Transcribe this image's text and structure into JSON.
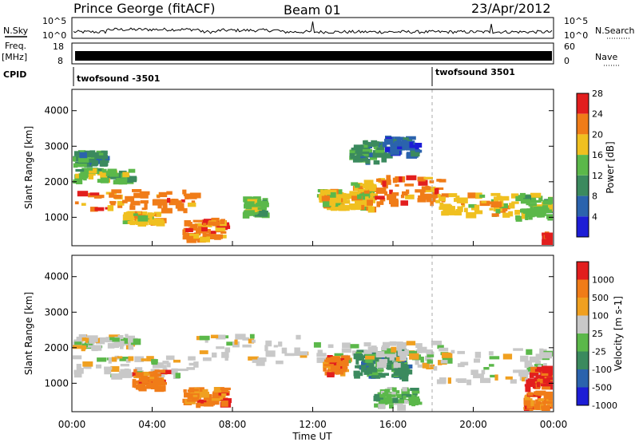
{
  "header": {
    "station": "Prince George (fitACF)",
    "beam": "Beam 01",
    "date": "23/Apr/2012"
  },
  "top_panels": {
    "nsky": {
      "label": "N.Sky",
      "ticks": [
        "10^5",
        "10^0"
      ]
    },
    "nsearch": {
      "label": "N.Search",
      "ticks": [
        "10^5",
        "10^0"
      ]
    },
    "freq": {
      "label_line1": "Freq.",
      "label_line2": "[MHz]",
      "ticks": [
        "18",
        "8"
      ]
    },
    "nave": {
      "label": "Nave",
      "ticks": [
        "60",
        "0"
      ]
    },
    "cpid": {
      "label": "CPID",
      "segments": [
        {
          "name": "twofsound -3501",
          "start_hour": 0
        },
        {
          "name": "twofsound 3501",
          "start_hour": 18
        }
      ]
    }
  },
  "x_axis": {
    "ticks": [
      "00:00",
      "04:00",
      "08:00",
      "12:00",
      "16:00",
      "20:00",
      "00:00"
    ],
    "label": "Time UT"
  },
  "chart_data": [
    {
      "type": "heatmap",
      "quantity": "power",
      "xlim": [
        0,
        24
      ],
      "x_units": "hours UT",
      "ylim": [
        200,
        4600
      ],
      "ylabel": "Slant Range [km]",
      "y_ticks": [
        "1000",
        "2000",
        "3000",
        "4000"
      ],
      "colorbar": {
        "label": "Power [dB]",
        "ticks": [
          "4",
          "8",
          "12",
          "16",
          "20",
          "24",
          "28"
        ],
        "colors": [
          "#1d1dd6",
          "#2b63ad",
          "#3b8a5e",
          "#5bb84a",
          "#f0c020",
          "#f07c18",
          "#e21e1e"
        ]
      },
      "bands": [
        {
          "t": [
            0.0,
            6.0
          ],
          "r": [
            1250,
            1800
          ],
          "level": 5
        },
        {
          "t": [
            0.0,
            3.0
          ],
          "r": [
            2050,
            2400
          ],
          "level": 3
        },
        {
          "t": [
            0.0,
            1.5
          ],
          "r": [
            2500,
            2900
          ],
          "level": 2
        },
        {
          "t": [
            2.5,
            4.2
          ],
          "r": [
            850,
            1200
          ],
          "level": 4
        },
        {
          "t": [
            5.5,
            7.5
          ],
          "r": [
            400,
            1000
          ],
          "level": 5
        },
        {
          "t": [
            8.5,
            9.5
          ],
          "r": [
            1100,
            1600
          ],
          "level": 3
        },
        {
          "t": [
            12.2,
            13.5
          ],
          "r": [
            1300,
            1800
          ],
          "level": 4
        },
        {
          "t": [
            13.8,
            14.8
          ],
          "r": [
            1300,
            2000
          ],
          "level": 4
        },
        {
          "t": [
            14.5,
            18.5
          ],
          "r": [
            1400,
            2200
          ],
          "level": 5
        },
        {
          "t": [
            18.0,
            22.0
          ],
          "r": [
            1100,
            1700
          ],
          "level": 4
        },
        {
          "t": [
            22.0,
            24.0
          ],
          "r": [
            1000,
            1700
          ],
          "level": 3
        },
        {
          "t": [
            23.4,
            24.0
          ],
          "r": [
            200,
            600
          ],
          "level": 6
        },
        {
          "t": [
            13.8,
            15.5
          ],
          "r": [
            2600,
            3200
          ],
          "level": 2
        },
        {
          "t": [
            15.5,
            17.0
          ],
          "r": [
            2800,
            3300
          ],
          "level": 1
        }
      ]
    },
    {
      "type": "heatmap",
      "quantity": "velocity",
      "xlim": [
        0,
        24
      ],
      "x_units": "hours UT",
      "ylim": [
        200,
        4600
      ],
      "ylabel": "Slant Range [km]",
      "y_ticks": [
        "1000",
        "2000",
        "3000",
        "4000"
      ],
      "colorbar": {
        "label": "Velocity [m s-1]",
        "ticks": [
          "1000",
          "500",
          "100",
          "25",
          "-25",
          "-100",
          "-500",
          "-1000"
        ],
        "colors": [
          "#1d1dd6",
          "#2b63ad",
          "#3b8a5e",
          "#5bb84a",
          "#c8c8c8",
          "#f0a020",
          "#f07c18",
          "#e21e1e"
        ]
      },
      "bands": [
        {
          "t": [
            0.0,
            6.0
          ],
          "r": [
            1250,
            1800
          ],
          "level": 4
        },
        {
          "t": [
            0.0,
            3.0
          ],
          "r": [
            2050,
            2400
          ],
          "level": 4
        },
        {
          "t": [
            3.0,
            4.5
          ],
          "r": [
            900,
            1400
          ],
          "level": 6
        },
        {
          "t": [
            5.5,
            7.5
          ],
          "r": [
            450,
            900
          ],
          "level": 6
        },
        {
          "t": [
            6.0,
            14.0
          ],
          "r": [
            1600,
            2400
          ],
          "level": 4
        },
        {
          "t": [
            12.5,
            13.5
          ],
          "r": [
            1300,
            1800
          ],
          "level": 6
        },
        {
          "t": [
            14.0,
            15.5
          ],
          "r": [
            1200,
            2000
          ],
          "level": 2
        },
        {
          "t": [
            15.5,
            16.5
          ],
          "r": [
            1200,
            2000
          ],
          "level": 2
        },
        {
          "t": [
            14.5,
            18.5
          ],
          "r": [
            1500,
            2200
          ],
          "level": 4
        },
        {
          "t": [
            18.0,
            24.0
          ],
          "r": [
            1100,
            2000
          ],
          "level": 4
        },
        {
          "t": [
            22.5,
            24.0
          ],
          "r": [
            900,
            1500
          ],
          "level": 7
        },
        {
          "t": [
            22.5,
            24.0
          ],
          "r": [
            300,
            800
          ],
          "level": 6
        },
        {
          "t": [
            15.0,
            17.0
          ],
          "r": [
            400,
            900
          ],
          "level": 3
        }
      ]
    }
  ]
}
